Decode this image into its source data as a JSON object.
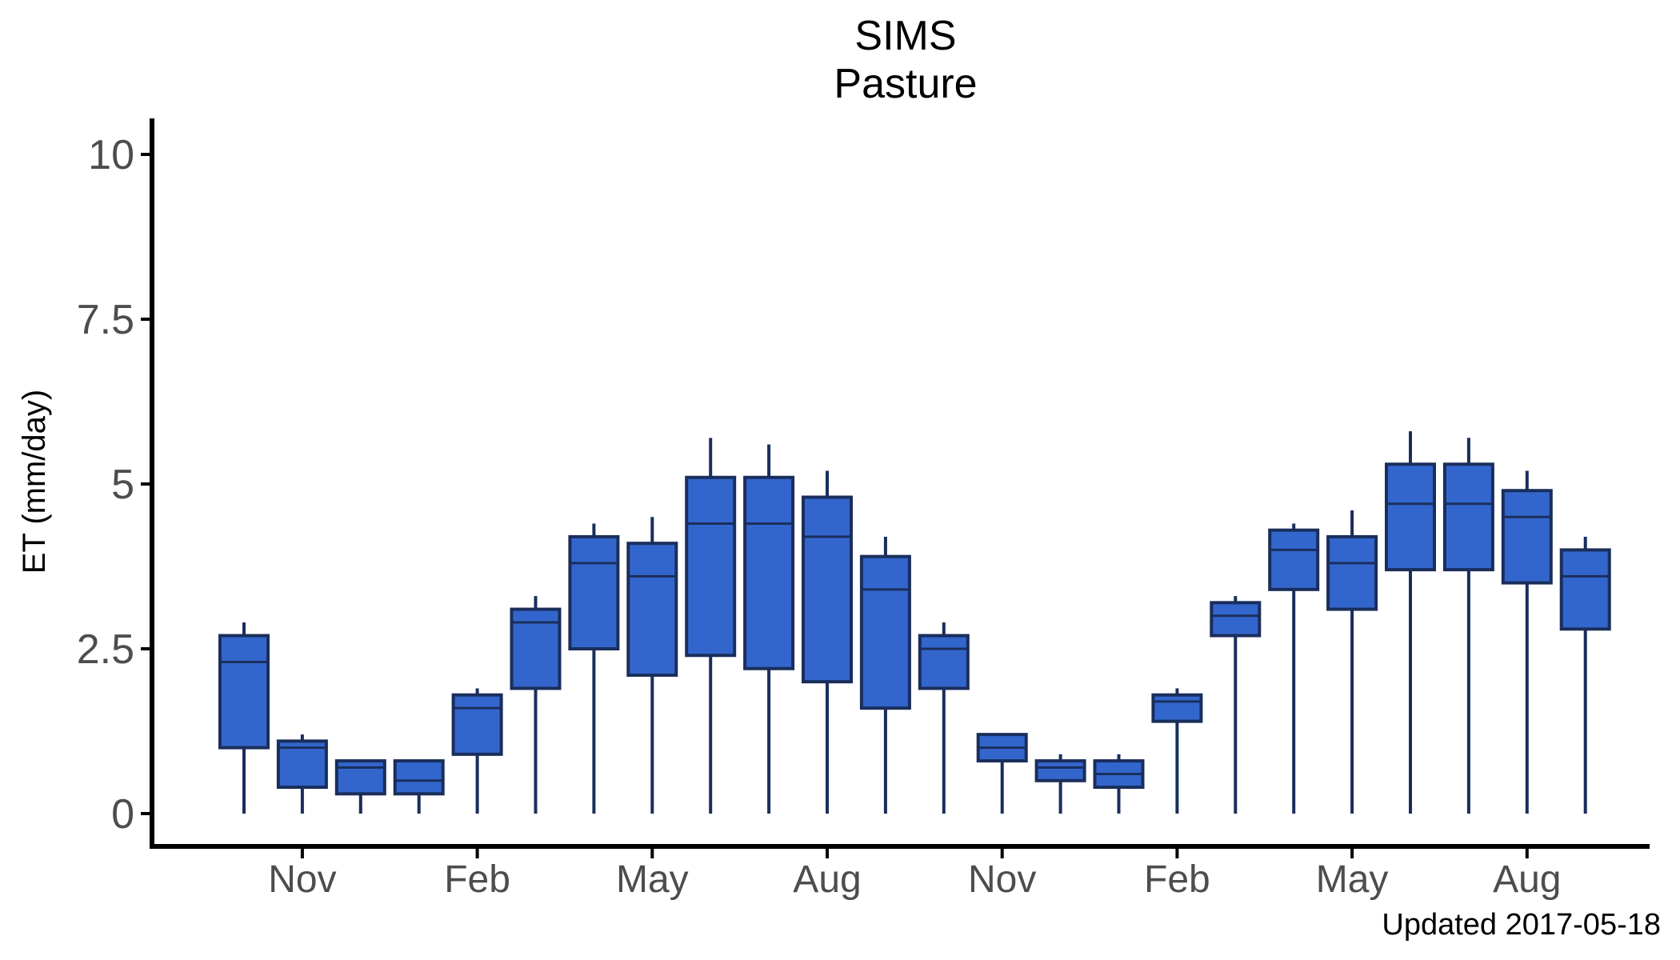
{
  "chart_data": {
    "type": "boxplot",
    "title": "SIMS",
    "subtitle": "Pasture",
    "xlabel": "",
    "ylabel": "ET (mm/day)",
    "caption": "Updated  2017-05-18",
    "ylim": [
      -0.5,
      10.5
    ],
    "yticks": [
      0,
      2.5,
      5,
      7.5,
      10
    ],
    "ytick_labels": [
      "0",
      "2.5",
      "5",
      "7.5",
      "10"
    ],
    "xtick_labels": [
      "Nov",
      "Feb",
      "May",
      "Aug",
      "Nov",
      "Feb",
      "May",
      "Aug"
    ],
    "xtick_positions": [
      2,
      5,
      8,
      11,
      14,
      17,
      20,
      23
    ],
    "grid": false,
    "legend": "none",
    "colors": {
      "fill": "#3366cc",
      "stroke": "#1a2e5c"
    },
    "boxes": [
      {
        "x": 1,
        "min": 0,
        "q1": 1.0,
        "median": 2.3,
        "q3": 2.7,
        "max": 2.9
      },
      {
        "x": 2,
        "min": 0,
        "q1": 0.4,
        "median": 1.0,
        "q3": 1.1,
        "max": 1.2
      },
      {
        "x": 3,
        "min": 0,
        "q1": 0.3,
        "median": 0.7,
        "q3": 0.8,
        "max": 0.8
      },
      {
        "x": 4,
        "min": 0,
        "q1": 0.3,
        "median": 0.5,
        "q3": 0.8,
        "max": 0.8
      },
      {
        "x": 5,
        "min": 0,
        "q1": 0.9,
        "median": 1.6,
        "q3": 1.8,
        "max": 1.9
      },
      {
        "x": 6,
        "min": 0,
        "q1": 1.9,
        "median": 2.9,
        "q3": 3.1,
        "max": 3.3
      },
      {
        "x": 7,
        "min": 0,
        "q1": 2.5,
        "median": 3.8,
        "q3": 4.2,
        "max": 4.4
      },
      {
        "x": 8,
        "min": 0,
        "q1": 2.1,
        "median": 3.6,
        "q3": 4.1,
        "max": 4.5
      },
      {
        "x": 9,
        "min": 0,
        "q1": 2.4,
        "median": 4.4,
        "q3": 5.1,
        "max": 5.7
      },
      {
        "x": 10,
        "min": 0,
        "q1": 2.2,
        "median": 4.4,
        "q3": 5.1,
        "max": 5.6
      },
      {
        "x": 11,
        "min": 0,
        "q1": 2.0,
        "median": 4.2,
        "q3": 4.8,
        "max": 5.2
      },
      {
        "x": 12,
        "min": 0,
        "q1": 1.6,
        "median": 3.4,
        "q3": 3.9,
        "max": 4.2
      },
      {
        "x": 13,
        "min": 0,
        "q1": 1.9,
        "median": 2.5,
        "q3": 2.7,
        "max": 2.9
      },
      {
        "x": 14,
        "min": 0,
        "q1": 0.8,
        "median": 1.0,
        "q3": 1.2,
        "max": 1.2
      },
      {
        "x": 15,
        "min": 0,
        "q1": 0.5,
        "median": 0.7,
        "q3": 0.8,
        "max": 0.9
      },
      {
        "x": 16,
        "min": 0,
        "q1": 0.4,
        "median": 0.6,
        "q3": 0.8,
        "max": 0.9
      },
      {
        "x": 17,
        "min": 0,
        "q1": 1.4,
        "median": 1.7,
        "q3": 1.8,
        "max": 1.9
      },
      {
        "x": 18,
        "min": 0,
        "q1": 2.7,
        "median": 3.0,
        "q3": 3.2,
        "max": 3.3
      },
      {
        "x": 19,
        "min": 0,
        "q1": 3.4,
        "median": 4.0,
        "q3": 4.3,
        "max": 4.4
      },
      {
        "x": 20,
        "min": 0,
        "q1": 3.1,
        "median": 3.8,
        "q3": 4.2,
        "max": 4.6
      },
      {
        "x": 21,
        "min": 0,
        "q1": 3.7,
        "median": 4.7,
        "q3": 5.3,
        "max": 5.8
      },
      {
        "x": 22,
        "min": 0,
        "q1": 3.7,
        "median": 4.7,
        "q3": 5.3,
        "max": 5.7
      },
      {
        "x": 23,
        "min": 0,
        "q1": 3.5,
        "median": 4.5,
        "q3": 4.9,
        "max": 5.2
      },
      {
        "x": 24,
        "min": 0,
        "q1": 2.8,
        "median": 3.6,
        "q3": 4.0,
        "max": 4.2
      }
    ]
  }
}
